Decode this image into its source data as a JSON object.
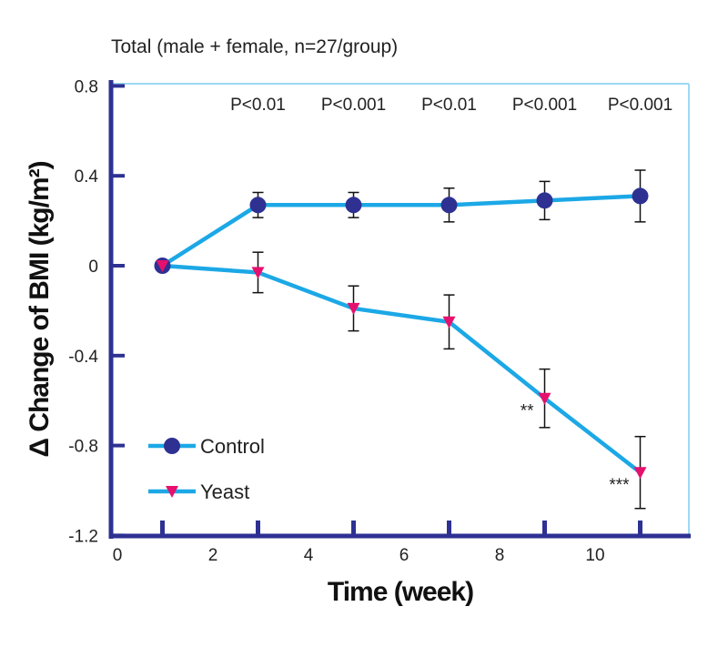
{
  "chart_data": {
    "type": "line",
    "title": "Total (male + female, n=27/group)",
    "xlabel": "Time (week)",
    "ylabel": "Δ Change of BMI (kg/m²)",
    "xlim": [
      0,
      12
    ],
    "ylim": [
      -1.2,
      0.8
    ],
    "xticks": [
      0,
      2,
      4,
      6,
      8,
      10
    ],
    "yticks": [
      0.8,
      0.4,
      0,
      -0.4,
      -0.8,
      -1.2
    ],
    "ytick_labels": [
      "0.8",
      "0.4",
      "0",
      "-0.4",
      "-0.8",
      "-1.2"
    ],
    "x": [
      1,
      3,
      5,
      7,
      9,
      11
    ],
    "series": [
      {
        "name": "Control",
        "values": [
          0,
          0.27,
          0.27,
          0.27,
          0.29,
          0.31
        ],
        "errors": [
          0,
          0.056,
          0.056,
          0.075,
          0.085,
          0.115
        ],
        "marker": "circle",
        "marker_color": "#2e3192",
        "line_color": "#1ca8e6"
      },
      {
        "name": "Yeast",
        "values": [
          0,
          -0.03,
          -0.19,
          -0.25,
          -0.59,
          -0.92
        ],
        "errors": [
          0,
          0.09,
          0.1,
          0.12,
          0.13,
          0.16
        ],
        "marker": "triangle-down",
        "marker_color": "#e6106e",
        "line_color": "#1ca8e6"
      }
    ],
    "pvalues": [
      "P<0.01",
      "P<0.001",
      "P<0.01",
      "P<0.001",
      "P<0.001"
    ],
    "annotations": [
      {
        "x": 9,
        "text": "**"
      },
      {
        "x": 11,
        "text": "***"
      }
    ],
    "legend_placement": "bottom-left",
    "grid": false
  }
}
